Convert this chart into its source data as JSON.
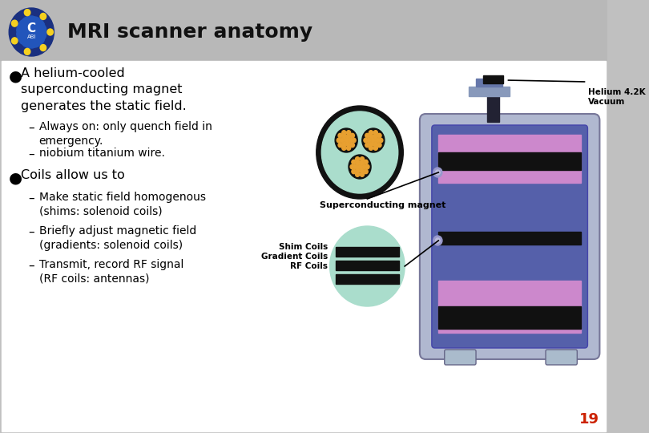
{
  "title": "MRI scanner anatomy",
  "bg_gray": "#c0c0c0",
  "header_gray": "#b8b8b8",
  "white": "#ffffff",
  "title_fontsize": 18,
  "bullet1_main": "A helium-cooled\nsuperconducting magnet\ngenerates the static field.",
  "bullet1_sub1": "Always on: only quench field in\nemergency.",
  "bullet1_sub2": "niobium titanium wire.",
  "bullet2_main": "Coils allow us to",
  "bullet2_sub1": "Make static field homogenous\n(shims: solenoid coils)",
  "bullet2_sub2": "Briefly adjust magnetic field\n(gradients: solenoid coils)",
  "bullet2_sub3": "Transmit, record RF signal\n(RF coils: antennas)",
  "page_number": "19",
  "label_superconducting": "Superconducting magnet",
  "label_shim": "Shim Coils\nGradient Coils\nRF Coils",
  "label_helium": "Helium 4.2K\nVacuum",
  "scanner_body_color": "#6666bb",
  "scanner_outer_color": "#9999bb",
  "scanner_casing_color": "#aaaacc",
  "band_pink": "#cc88cc",
  "band_dark": "#111111",
  "magnet_circle_color": "#aaddcc",
  "magnet_black": "#111111",
  "wire_orange": "#e8a030",
  "coil_circle_color": "#aaddcc"
}
